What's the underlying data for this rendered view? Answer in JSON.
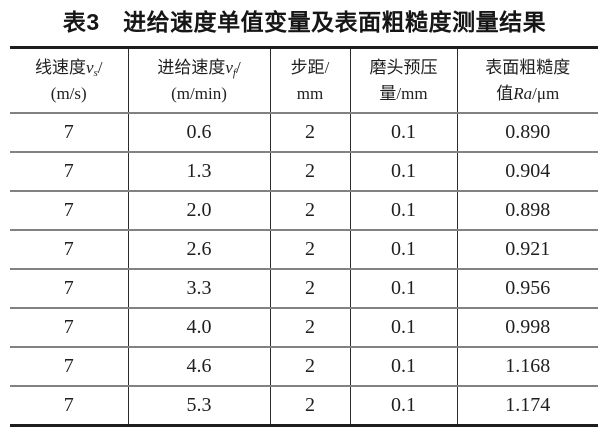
{
  "title": "表3　进给速度单值变量及表面粗糙度测量结果",
  "table": {
    "headers": [
      {
        "name": "linear-speed",
        "lines": [
          [
            {
              "t": "线速度"
            },
            {
              "t": "v",
              "i": true
            },
            {
              "t": "s",
              "sub": true
            },
            {
              "t": "/"
            }
          ],
          [
            {
              "t": "(m/s)"
            }
          ]
        ]
      },
      {
        "name": "feed-speed",
        "lines": [
          [
            {
              "t": "进给速度"
            },
            {
              "t": "v",
              "i": true
            },
            {
              "t": "f",
              "sub": true
            },
            {
              "t": "/"
            }
          ],
          [
            {
              "t": "(m/min)"
            }
          ]
        ]
      },
      {
        "name": "step-distance",
        "lines": [
          [
            {
              "t": "步距/"
            }
          ],
          [
            {
              "t": "mm"
            }
          ]
        ]
      },
      {
        "name": "head-preload",
        "lines": [
          [
            {
              "t": "磨头预压"
            }
          ],
          [
            {
              "t": "量/mm"
            }
          ]
        ]
      },
      {
        "name": "surface-roughness",
        "lines": [
          [
            {
              "t": "表面粗糙度"
            }
          ],
          [
            {
              "t": "值"
            },
            {
              "t": "Ra",
              "i": true
            },
            {
              "t": "/μm"
            }
          ]
        ]
      }
    ],
    "rows": [
      [
        "7",
        "0.6",
        "2",
        "0.1",
        "0.890"
      ],
      [
        "7",
        "1.3",
        "2",
        "0.1",
        "0.904"
      ],
      [
        "7",
        "2.0",
        "2",
        "0.1",
        "0.898"
      ],
      [
        "7",
        "2.6",
        "2",
        "0.1",
        "0.921"
      ],
      [
        "7",
        "3.3",
        "2",
        "0.1",
        "0.956"
      ],
      [
        "7",
        "4.0",
        "2",
        "0.1",
        "0.998"
      ],
      [
        "7",
        "4.6",
        "2",
        "0.1",
        "1.168"
      ],
      [
        "7",
        "5.3",
        "2",
        "0.1",
        "1.174"
      ]
    ]
  },
  "colors": {
    "text": "#1f1f1f",
    "outer_border": "#1d1d1d",
    "inner_horizontal_line": "#828282",
    "vertical_line": "#2b2b2b",
    "background": "#ffffff"
  }
}
